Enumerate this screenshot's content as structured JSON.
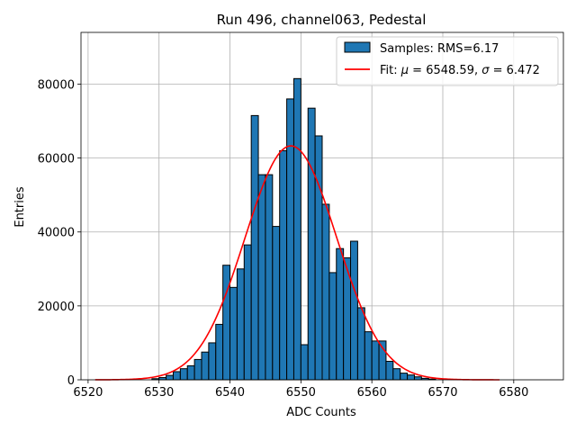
{
  "chart_data": {
    "type": "bar",
    "title": "Run 496, channel063, Pedestal",
    "xlabel": "ADC Counts",
    "ylabel": "Entries",
    "xlim": [
      6519,
      6587
    ],
    "ylim": [
      0,
      94000
    ],
    "xticks": [
      6520,
      6530,
      6540,
      6550,
      6560,
      6570,
      6580
    ],
    "yticks": [
      0,
      20000,
      40000,
      60000,
      80000
    ],
    "grid": true,
    "legend_position": "top-right",
    "histogram": {
      "name": "Samples: RMS=6.17",
      "color": "#1f77b4",
      "bin_width": 1,
      "bins": [
        [
          6529,
          300
        ],
        [
          6530,
          600
        ],
        [
          6531,
          1200
        ],
        [
          6532,
          2200
        ],
        [
          6533,
          3000
        ],
        [
          6534,
          3800
        ],
        [
          6535,
          5500
        ],
        [
          6536,
          7500
        ],
        [
          6537,
          10000
        ],
        [
          6538,
          15000
        ],
        [
          6539,
          31000
        ],
        [
          6540,
          25000
        ],
        [
          6541,
          30000
        ],
        [
          6542,
          36500
        ],
        [
          6543,
          71500
        ],
        [
          6544,
          55500
        ],
        [
          6545,
          55500
        ],
        [
          6546,
          41500
        ],
        [
          6547,
          62000
        ],
        [
          6548,
          76000
        ],
        [
          6549,
          81500
        ],
        [
          6550,
          9500
        ],
        [
          6551,
          73500
        ],
        [
          6552,
          66000
        ],
        [
          6553,
          47500
        ],
        [
          6554,
          29000
        ],
        [
          6555,
          35500
        ],
        [
          6556,
          33000
        ],
        [
          6557,
          37500
        ],
        [
          6558,
          19500
        ],
        [
          6559,
          13000
        ],
        [
          6560,
          10500
        ],
        [
          6561,
          10500
        ],
        [
          6562,
          5000
        ],
        [
          6563,
          3000
        ],
        [
          6564,
          1800
        ],
        [
          6565,
          1300
        ],
        [
          6566,
          800
        ],
        [
          6567,
          400
        ],
        [
          6568,
          200
        ]
      ]
    },
    "fit": {
      "name": "Fit: μ = 6548.59, σ = 6.472",
      "name_parts": [
        "Fit: ",
        "μ",
        " = 6548.59, ",
        "σ",
        " = 6.472"
      ],
      "color": "#ff0000",
      "mu": 6548.59,
      "sigma": 6.472,
      "amplitude": 63300,
      "x_range": [
        6521,
        6578
      ]
    }
  }
}
